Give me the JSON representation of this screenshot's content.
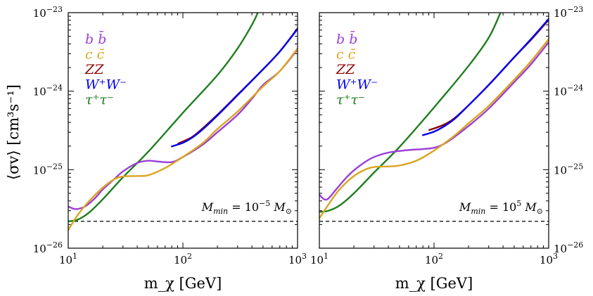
{
  "chart_data": {
    "type": "line",
    "log_x": true,
    "log_y": true,
    "xlim": [
      10,
      1000
    ],
    "ylim": [
      1e-26,
      1e-23
    ],
    "xlabel": "m_χ [GeV]",
    "ylabel": "⟨σv⟩ [cm³s⁻¹]",
    "x_ticks": [
      {
        "value": 10,
        "base": "10",
        "exp": "1"
      },
      {
        "value": 100,
        "base": "10",
        "exp": "2"
      },
      {
        "value": 1000,
        "base": "10",
        "exp": "3"
      }
    ],
    "y_ticks": [
      {
        "value": 1e-26,
        "base": "10",
        "exp": "−26"
      },
      {
        "value": 1e-25,
        "base": "10",
        "exp": "−25"
      },
      {
        "value": 1e-24,
        "base": "10",
        "exp": "−24"
      },
      {
        "value": 1e-23,
        "base": "10",
        "exp": "−23"
      }
    ],
    "legend": [
      {
        "channel": "bb",
        "label": "b b̄",
        "color": "#9b3fd9"
      },
      {
        "channel": "cc",
        "label": "c c̄",
        "color": "#daa520"
      },
      {
        "channel": "ZZ",
        "label": "ZZ",
        "color": "#8b0000"
      },
      {
        "channel": "WW",
        "label": "W⁺W⁻",
        "color": "#0000ee"
      },
      {
        "channel": "tautau",
        "label": "τ⁺τ⁻",
        "color": "#1e7e1e"
      }
    ],
    "panels": [
      {
        "annotation": {
          "main": "M",
          "sub": "min",
          "eq": " = 10",
          "sup": "−5",
          "tail": "M",
          "tail_sub": "⊙"
        },
        "reference_line": 2.2e-26,
        "series": [
          {
            "name": "tautau",
            "color": "#1e7e1e",
            "points": [
              [
                10,
                2.2e-26
              ],
              [
                12,
                2.3e-26
              ],
              [
                15,
                2.8e-26
              ],
              [
                20,
                4.2e-26
              ],
              [
                30,
                8e-26
              ],
              [
                50,
                1.7e-25
              ],
              [
                100,
                5.3e-25
              ],
              [
                200,
                1.6e-24
              ],
              [
                300,
                3.5e-24
              ],
              [
                400,
                7e-24
              ],
              [
                450,
                1e-23
              ]
            ]
          },
          {
            "name": "bb",
            "color": "#9b3fd9",
            "points": [
              [
                10,
                3.4e-26
              ],
              [
                11,
                3.2e-26
              ],
              [
                12,
                3.15e-26
              ],
              [
                14,
                3.4e-26
              ],
              [
                17,
                4.3e-26
              ],
              [
                20,
                5.6e-26
              ],
              [
                25,
                7.5e-26
              ],
              [
                30,
                9.5e-26
              ],
              [
                40,
                1.22e-25
              ],
              [
                50,
                1.3e-25
              ],
              [
                60,
                1.27e-25
              ],
              [
                80,
                1.25e-25
              ],
              [
                100,
                1.45e-25
              ],
              [
                150,
                2.1e-25
              ],
              [
                200,
                3e-25
              ],
              [
                300,
                5e-25
              ],
              [
                400,
                8e-25
              ],
              [
                500,
                1.2e-24
              ],
              [
                700,
                1.8e-24
              ],
              [
                1000,
                3.4e-24
              ]
            ]
          },
          {
            "name": "cc",
            "color": "#daa520",
            "points": [
              [
                10,
                1.7e-26
              ],
              [
                12,
                2.6e-26
              ],
              [
                15,
                3.9e-26
              ],
              [
                20,
                5.9e-26
              ],
              [
                25,
                7.5e-26
              ],
              [
                30,
                8.2e-26
              ],
              [
                40,
                8.3e-26
              ],
              [
                50,
                8.5e-26
              ],
              [
                70,
                1.05e-25
              ],
              [
                100,
                1.45e-25
              ],
              [
                150,
                2.2e-25
              ],
              [
                200,
                3.3e-25
              ],
              [
                300,
                5.5e-25
              ],
              [
                500,
                1.15e-24
              ],
              [
                700,
                1.8e-24
              ],
              [
                1000,
                3.5e-24
              ]
            ]
          },
          {
            "name": "ZZ",
            "color": "#8b0000",
            "points": [
              [
                91,
                2.15e-25
              ],
              [
                120,
                2.6e-25
              ],
              [
                150,
                3.4e-25
              ],
              [
                200,
                5e-25
              ],
              [
                300,
                9e-25
              ],
              [
                500,
                1.9e-24
              ],
              [
                700,
                3.2e-24
              ],
              [
                1000,
                6.3e-24
              ]
            ]
          },
          {
            "name": "WW",
            "color": "#0000ee",
            "points": [
              [
                80,
                1.98e-25
              ],
              [
                100,
                2.2e-25
              ],
              [
                120,
                2.55e-25
              ],
              [
                150,
                3.3e-25
              ],
              [
                200,
                4.9e-25
              ],
              [
                300,
                8.9e-25
              ],
              [
                500,
                1.9e-24
              ],
              [
                700,
                3.2e-24
              ],
              [
                1000,
                6.2e-24
              ]
            ]
          }
        ]
      },
      {
        "annotation": {
          "main": "M",
          "sub": "min",
          "eq": " = 10",
          "sup": "5",
          "tail": "M",
          "tail_sub": "⊙"
        },
        "reference_line": 2.2e-26,
        "series": [
          {
            "name": "tautau",
            "color": "#1e7e1e",
            "points": [
              [
                10,
                2.9e-26
              ],
              [
                12,
                3e-26
              ],
              [
                15,
                3.5e-26
              ],
              [
                20,
                5e-26
              ],
              [
                30,
                9.2e-26
              ],
              [
                50,
                1.95e-25
              ],
              [
                100,
                6.2e-25
              ],
              [
                200,
                2.1e-24
              ],
              [
                300,
                4.8e-24
              ],
              [
                380,
                1e-23
              ]
            ]
          },
          {
            "name": "bb",
            "color": "#9b3fd9",
            "points": [
              [
                10,
                4.8e-26
              ],
              [
                11,
                4.2e-26
              ],
              [
                12,
                4.3e-26
              ],
              [
                14,
                5.6e-26
              ],
              [
                17,
                7.8e-26
              ],
              [
                20,
                9.8e-26
              ],
              [
                25,
                1.25e-25
              ],
              [
                30,
                1.45e-25
              ],
              [
                40,
                1.65e-25
              ],
              [
                60,
                1.78e-25
              ],
              [
                80,
                1.83e-25
              ],
              [
                100,
                1.9e-25
              ],
              [
                120,
                2.1e-25
              ],
              [
                150,
                2.6e-25
              ],
              [
                200,
                3.6e-25
              ],
              [
                300,
                6e-25
              ],
              [
                500,
                1.3e-24
              ],
              [
                700,
                2.2e-24
              ],
              [
                1000,
                4.2e-24
              ]
            ]
          },
          {
            "name": "cc",
            "color": "#daa520",
            "points": [
              [
                10,
                2.4e-26
              ],
              [
                12,
                3.6e-26
              ],
              [
                15,
                5.6e-26
              ],
              [
                20,
                8.3e-26
              ],
              [
                25,
                1e-25
              ],
              [
                30,
                1.08e-25
              ],
              [
                40,
                1.1e-25
              ],
              [
                50,
                1.13e-25
              ],
              [
                70,
                1.3e-25
              ],
              [
                100,
                1.75e-25
              ],
              [
                150,
                2.7e-25
              ],
              [
                200,
                3.9e-25
              ],
              [
                300,
                6.5e-25
              ],
              [
                500,
                1.4e-24
              ],
              [
                700,
                2.4e-24
              ],
              [
                1000,
                4.6e-24
              ]
            ]
          },
          {
            "name": "ZZ",
            "color": "#8b0000",
            "points": [
              [
                91,
                3.2e-25
              ],
              [
                120,
                3.7e-25
              ],
              [
                150,
                4.5e-25
              ],
              [
                200,
                6.6e-25
              ],
              [
                300,
                1.2e-24
              ],
              [
                500,
                2.7e-24
              ],
              [
                700,
                4.5e-24
              ],
              [
                1000,
                8.1e-24
              ]
            ]
          },
          {
            "name": "WW",
            "color": "#0000ee",
            "points": [
              [
                80,
                2.75e-25
              ],
              [
                100,
                3.05e-25
              ],
              [
                120,
                3.5e-25
              ],
              [
                150,
                4.4e-25
              ],
              [
                200,
                6.6e-25
              ],
              [
                300,
                1.2e-24
              ],
              [
                500,
                2.7e-24
              ],
              [
                700,
                4.6e-24
              ],
              [
                1000,
                8.3e-24
              ]
            ]
          }
        ]
      }
    ]
  }
}
